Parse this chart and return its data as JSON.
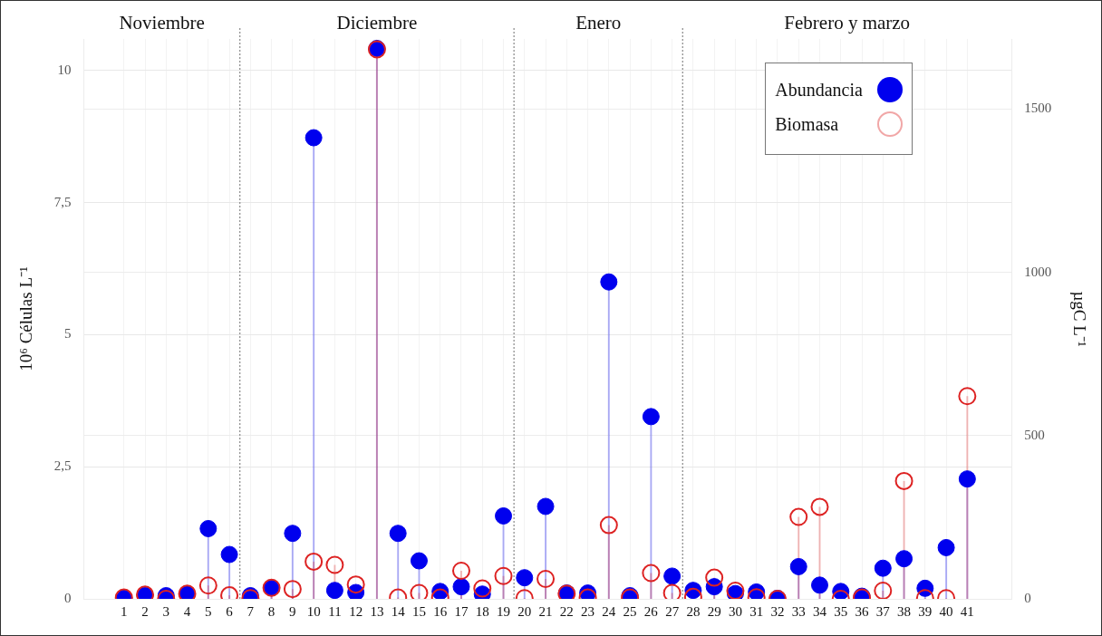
{
  "chart_data": {
    "type": "lollipop",
    "x": [
      1,
      2,
      3,
      4,
      5,
      6,
      7,
      8,
      9,
      10,
      11,
      12,
      13,
      14,
      15,
      16,
      17,
      18,
      19,
      20,
      21,
      22,
      23,
      24,
      25,
      26,
      27,
      28,
      29,
      30,
      31,
      32,
      33,
      34,
      35,
      36,
      37,
      38,
      39,
      40,
      41
    ],
    "xlim": [
      -0.9,
      43.1
    ],
    "xticks": [
      1,
      2,
      3,
      4,
      5,
      6,
      7,
      8,
      9,
      10,
      11,
      12,
      13,
      14,
      15,
      16,
      17,
      18,
      19,
      20,
      21,
      22,
      23,
      24,
      25,
      26,
      27,
      28,
      29,
      30,
      31,
      32,
      33,
      34,
      35,
      36,
      37,
      38,
      39,
      40,
      41
    ],
    "ylim": [
      0,
      10.6
    ],
    "yticks": [
      0,
      {
        "value": 2.5,
        "label": "2,5"
      },
      5,
      {
        "value": 7.5,
        "label": "7,5"
      },
      10
    ],
    "y2lim": [
      0,
      1715
    ],
    "y2ticks": [
      0,
      500,
      1000,
      1500
    ],
    "ylabel": "10⁶ Células L⁻¹",
    "y2label": "µgC L⁻¹",
    "grid": true,
    "legend": "top right",
    "marker": "circle",
    "ref_lines": [
      {
        "axis": "x",
        "value": 6.5,
        "line_style": "dotted",
        "color": "#888888"
      },
      {
        "axis": "x",
        "value": 19.5,
        "line_style": "dotted",
        "color": "#888888"
      },
      {
        "axis": "x",
        "value": 27.5,
        "line_style": "dotted",
        "color": "#888888"
      }
    ],
    "annotations": [
      "Noviembre",
      "Diciembre",
      "Enero",
      "Febrero y marzo"
    ],
    "series": [
      {
        "name": "Abundancia",
        "color": "#0000ee",
        "values": [
          0.02,
          0.07,
          0.06,
          0.09,
          1.33,
          0.84,
          0.06,
          0.21,
          1.24,
          8.73,
          0.16,
          0.12,
          10.42,
          1.24,
          0.72,
          0.14,
          0.23,
          0.09,
          1.57,
          0.4,
          1.75,
          0.11,
          0.11,
          6.0,
          0.06,
          3.45,
          0.43,
          0.16,
          0.23,
          0.1,
          0.13,
          0.01,
          0.61,
          0.26,
          0.14,
          0.05,
          0.58,
          0.76,
          0.2,
          0.97,
          2.27
        ]
      },
      {
        "name": "Biomasa",
        "color": "#dd2222",
        "axis": "y2",
        "values": [
          4,
          13,
          0,
          16,
          41,
          11,
          2,
          34,
          30,
          114,
          104,
          44,
          1683,
          4,
          18,
          4,
          86,
          32,
          70,
          2,
          61,
          16,
          4,
          226,
          4,
          79,
          18,
          6,
          65,
          25,
          5,
          0,
          251,
          282,
          0,
          4,
          25,
          361,
          2,
          2,
          621
        ]
      }
    ]
  }
}
